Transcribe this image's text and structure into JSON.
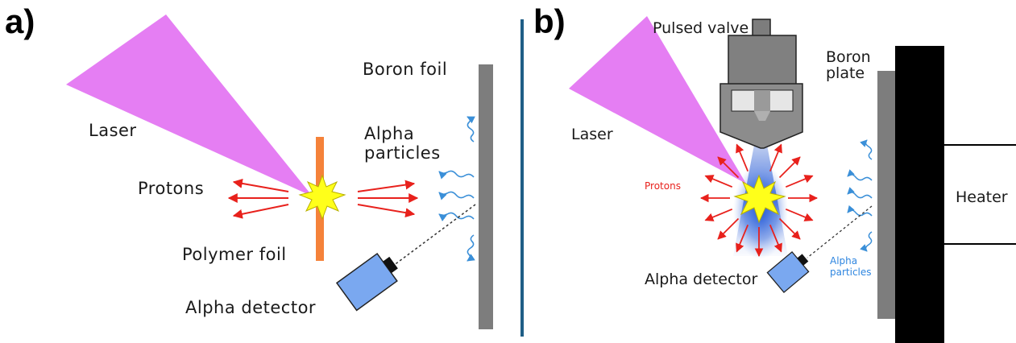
{
  "panel_a": {
    "letter": "a)",
    "labels": {
      "laser": "Laser",
      "protons": "Protons",
      "boron_foil": "Boron foil",
      "alpha_particles_1": "Alpha",
      "alpha_particles_2": "particles",
      "polymer_foil": "Polymer foil",
      "alpha_detector": "Alpha detector"
    }
  },
  "panel_b": {
    "letter": "b)",
    "labels": {
      "pulsed_valve": "Pulsed valve",
      "laser": "Laser",
      "boron_plate_1": "Boron",
      "boron_plate_2": "plate",
      "heater": "Heater",
      "protons": "Protons",
      "alpha_detector": "Alpha detector",
      "alpha_particles_1": "Alpha",
      "alpha_particles_2": "particles"
    }
  },
  "colors": {
    "laser": "#e57ef3",
    "proton_arrow": "#e8211c",
    "alpha_arrow": "#3a8fd8",
    "polymer_foil": "#f5823a",
    "boron": "#7d7d7d",
    "detector": "#7aa8f0",
    "heater": "#000000",
    "divider": "#1f5e86",
    "flash": "#ffff1a",
    "blue_label": "#2f86e0",
    "red_label": "#e8211c"
  }
}
